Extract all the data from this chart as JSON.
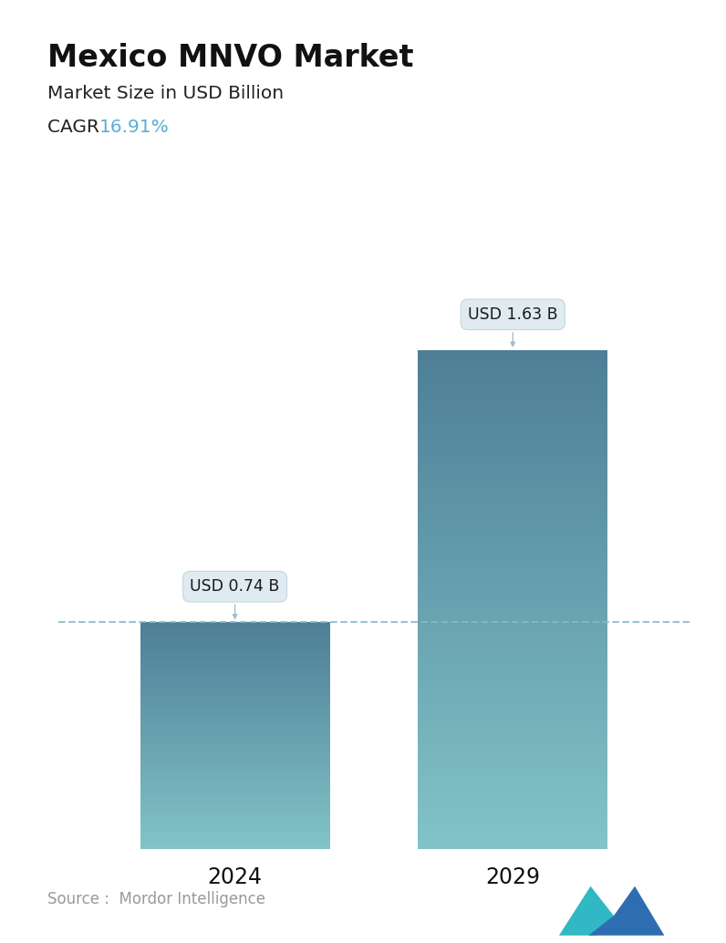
{
  "title": "Mexico MNVO Market",
  "subtitle": "Market Size in USD Billion",
  "cagr_label": "CAGR ",
  "cagr_value": "16.91%",
  "cagr_color": "#5aadd4",
  "categories": [
    "2024",
    "2029"
  ],
  "values": [
    0.74,
    1.63
  ],
  "bar_labels": [
    "USD 0.74 B",
    "USD 1.63 B"
  ],
  "bar_top_colors": [
    "#4e7f97",
    "#4e7f97"
  ],
  "bar_bottom_colors": [
    "#82c4c8",
    "#82c4c8"
  ],
  "dashed_line_color": "#88b8cc",
  "dashed_line_y": 0.74,
  "source_text": "Source :  Mordor Intelligence",
  "source_color": "#999999",
  "background_color": "#ffffff",
  "ylim": [
    0,
    1.85
  ],
  "bar_positions": [
    0.28,
    0.72
  ],
  "bar_width": 0.3,
  "figsize": [
    7.96,
    10.34
  ],
  "dpi": 100
}
